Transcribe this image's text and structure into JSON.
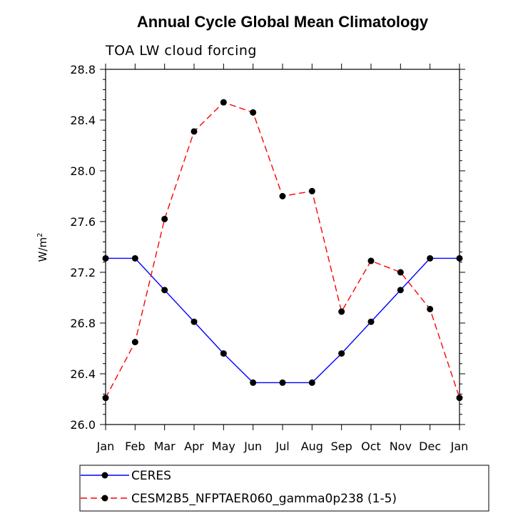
{
  "chart_data": {
    "type": "line",
    "title": "Annual Cycle Global Mean Climatology",
    "subtitle": "TOA LW cloud forcing",
    "ylabel": "W/m",
    "ylabel_superscript": "2",
    "xlabel": "",
    "categories": [
      "Jan",
      "Feb",
      "Mar",
      "Apr",
      "May",
      "Jun",
      "Jul",
      "Aug",
      "Sep",
      "Oct",
      "Nov",
      "Dec",
      "Jan"
    ],
    "ylim": [
      26.0,
      28.8
    ],
    "yticks": [
      "26.0",
      "26.4",
      "26.8",
      "27.2",
      "27.6",
      "28.0",
      "28.4",
      "28.8"
    ],
    "series": [
      {
        "name": "CERES",
        "color": "#0000ff",
        "dash": "solid",
        "values": [
          27.31,
          27.31,
          27.06,
          26.81,
          26.56,
          26.33,
          26.33,
          26.33,
          26.56,
          26.81,
          27.06,
          27.31,
          27.31
        ]
      },
      {
        "name": "CESM2B5_NFPTAER060_gamma0p238 (1-5)",
        "color": "#ff0000",
        "dash": "dashed",
        "values": [
          26.21,
          26.65,
          27.62,
          28.31,
          28.54,
          28.46,
          27.8,
          27.84,
          26.89,
          27.29,
          27.2,
          26.91,
          26.21
        ]
      }
    ],
    "legend_position": "bottom-left"
  }
}
